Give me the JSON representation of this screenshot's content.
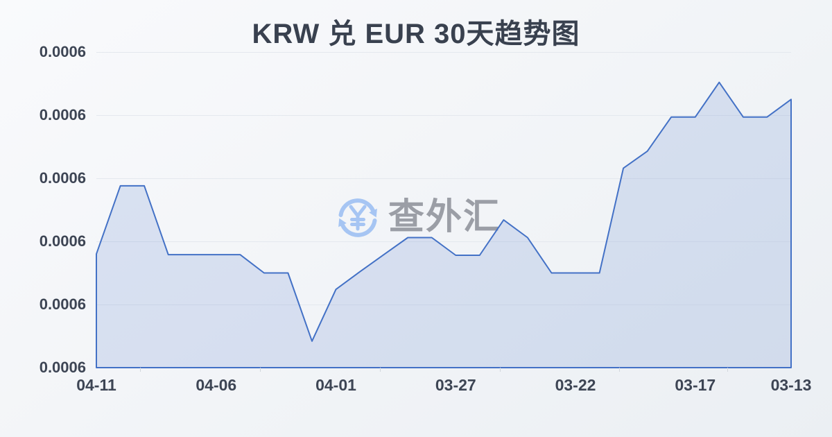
{
  "title": "KRW 兑 EUR 30天趋势图",
  "watermark": {
    "text": "查外汇",
    "icon": "currency-exchange-icon",
    "symbol": "yuan"
  },
  "colors": {
    "background_top": "#f9fafc",
    "background_bottom": "#ebeff3",
    "title_text": "#39414f",
    "axis_text": "#3d4554",
    "gridline": "#e4e8ee",
    "line": "#4371c6",
    "area_fill": "rgba(67,113,198,0.16)",
    "watermark_blue": "#a6c5f3",
    "watermark_gray": "#9b9ea6"
  },
  "chart_data": {
    "type": "area",
    "title": "KRW 兑 EUR 30天趋势图",
    "xlabel": "",
    "ylabel": "",
    "grid": true,
    "legend": "none",
    "x": [
      "04-11",
      "04-10",
      "04-09",
      "04-08",
      "04-07",
      "04-06",
      "04-05",
      "04-04",
      "04-03",
      "04-02",
      "04-01",
      "03-31",
      "03-30",
      "03-29",
      "03-28",
      "03-27",
      "03-26",
      "03-25",
      "03-24",
      "03-23",
      "03-22",
      "03-21",
      "03-20",
      "03-19",
      "03-18",
      "03-17",
      "03-16",
      "03-15",
      "03-14",
      "03-13"
    ],
    "values": [
      0.000608,
      0.0006188,
      0.0006188,
      0.0006079,
      0.0006079,
      0.0006079,
      0.0006079,
      0.000605,
      0.000605,
      0.0005942,
      0.0006024,
      0.0006052,
      0.0006079,
      0.0006106,
      0.0006106,
      0.0006078,
      0.0006078,
      0.0006134,
      0.0006106,
      0.000605,
      0.000605,
      0.000605,
      0.0006216,
      0.0006243,
      0.0006297,
      0.0006297,
      0.0006352,
      0.0006297,
      0.0006297,
      0.0006325
    ],
    "ylim": [
      0.00059,
      0.00064
    ],
    "x_tick_indices": [
      0,
      5,
      10,
      15,
      20,
      25,
      29
    ],
    "x_tick_labels": [
      "04-11",
      "04-06",
      "04-01",
      "03-27",
      "03-22",
      "03-17",
      "03-13"
    ],
    "y_tick_labels": [
      "0.0006",
      "0.0006",
      "0.0006",
      "0.0006",
      "0.0006",
      "0.0006"
    ],
    "x_axis_reversed_time": true
  }
}
